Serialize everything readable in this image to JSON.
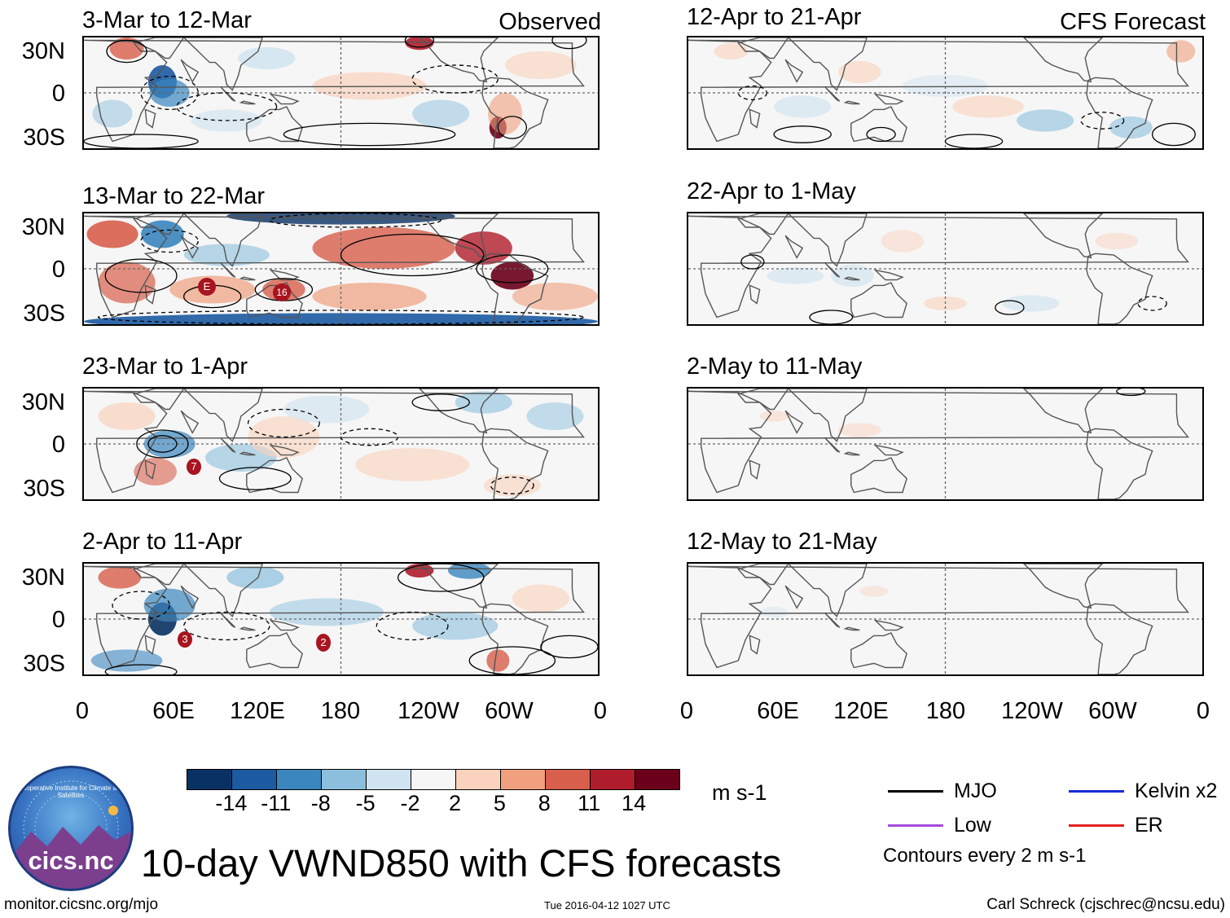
{
  "left_header": "Observed",
  "right_header": "CFS Forecast",
  "observed_panels": [
    {
      "title": "3-Mar to 12-Mar"
    },
    {
      "title": "13-Mar to 22-Mar"
    },
    {
      "title": "23-Mar to 1-Apr"
    },
    {
      "title": "2-Apr to 11-Apr"
    }
  ],
  "forecast_panels": [
    {
      "title": "12-Apr to 21-Apr"
    },
    {
      "title": "22-Apr to 1-May"
    },
    {
      "title": "2-May to 11-May"
    },
    {
      "title": "12-May to 21-May"
    }
  ],
  "lat_labels": [
    "30N",
    "0",
    "30S"
  ],
  "lon_labels": [
    "0",
    "60E",
    "120E",
    "180",
    "120W",
    "60W",
    "0"
  ],
  "storm_markers": [
    {
      "panel": 1,
      "label": "E"
    },
    {
      "panel": 1,
      "label": "16"
    },
    {
      "panel": 2,
      "label": "7"
    },
    {
      "panel": 3,
      "label": "3"
    },
    {
      "panel": 3,
      "label": "2"
    }
  ],
  "colorbar": {
    "colors": [
      "#0a3163",
      "#1c5aa2",
      "#3b86bf",
      "#8cbfdd",
      "#cfe3f0",
      "#f6f6f6",
      "#fad2bd",
      "#f0a07e",
      "#d85f4c",
      "#b01d2c",
      "#6a0019"
    ],
    "labels": [
      "-14",
      "-11",
      "-8",
      "-5",
      "-2",
      "2",
      "5",
      "8",
      "11",
      "14"
    ],
    "units": "m s-1"
  },
  "legend": {
    "items": [
      {
        "label": "MJO",
        "color": "#000000"
      },
      {
        "label": "Kelvin x2",
        "color": "#1a2bd6"
      },
      {
        "label": "Low",
        "color": "#a24bdc"
      },
      {
        "label": "ER",
        "color": "#e0211e"
      }
    ],
    "note": "Contours every 2 m s-1"
  },
  "logo_text": "cics.nc",
  "logo_ring_text": "Cooperative Institute for Climate and Satellites",
  "main_title": "10-day VWND850 with CFS forecasts",
  "footer_left": "monitor.cicsnc.org/mjo",
  "footer_center": "Tue 2016-04-12 1027 UTC",
  "footer_right": "Carl Schreck (cjschrec@ncsu.edu)"
}
